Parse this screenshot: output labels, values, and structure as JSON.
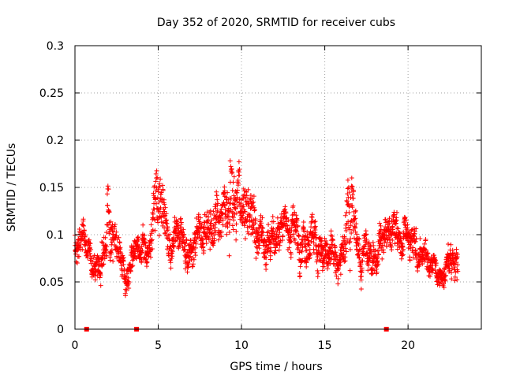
{
  "chart_data": {
    "type": "scatter",
    "title": "Day 352 of 2020, SRMTID for receiver cubs",
    "xlabel": "GPS time / hours",
    "ylabel": "SRMTID / TECUs",
    "xlim": [
      0,
      24.4
    ],
    "ylim": [
      0,
      0.3
    ],
    "x_ticks": [
      0,
      5,
      10,
      15,
      20
    ],
    "x_tick_labels": [
      "0",
      "5",
      "10",
      "15",
      "20"
    ],
    "y_ticks": [
      0,
      0.05,
      0.1,
      0.15,
      0.2,
      0.25,
      0.3
    ],
    "y_tick_labels": [
      "0",
      "0.05",
      "0.1",
      "0.15",
      "0.2",
      "0.25",
      "0.3"
    ],
    "grid": true,
    "marker": "plus",
    "color": "#ff0000",
    "gap_markers_x": [
      0.7,
      3.7,
      18.7
    ],
    "x_range": [
      0.0,
      23.0
    ],
    "sample_interval_hours": 0.01,
    "envelope": {
      "x": [
        0.0,
        0.5,
        1.0,
        1.5,
        2.0,
        2.5,
        3.0,
        3.5,
        4.0,
        4.5,
        5.0,
        5.5,
        6.0,
        6.5,
        7.0,
        7.5,
        8.0,
        8.5,
        9.0,
        9.5,
        10.0,
        10.5,
        11.0,
        11.5,
        12.0,
        12.5,
        13.0,
        13.5,
        14.0,
        14.5,
        15.0,
        15.5,
        16.0,
        16.5,
        17.0,
        17.5,
        18.0,
        18.5,
        19.0,
        19.5,
        20.0,
        20.5,
        21.0,
        21.5,
        22.0,
        22.5,
        23.0
      ],
      "y_mean": [
        0.085,
        0.09,
        0.075,
        0.07,
        0.11,
        0.09,
        0.06,
        0.075,
        0.09,
        0.08,
        0.13,
        0.11,
        0.1,
        0.09,
        0.085,
        0.095,
        0.11,
        0.125,
        0.13,
        0.15,
        0.11,
        0.14,
        0.1,
        0.09,
        0.085,
        0.1,
        0.11,
        0.1,
        0.09,
        0.1,
        0.08,
        0.085,
        0.08,
        0.12,
        0.07,
        0.085,
        0.08,
        0.09,
        0.1,
        0.085,
        0.095,
        0.09,
        0.08,
        0.07,
        0.055,
        0.085,
        0.08
      ],
      "y_spread": [
        0.03,
        0.03,
        0.025,
        0.025,
        0.05,
        0.03,
        0.025,
        0.025,
        0.03,
        0.025,
        0.07,
        0.035,
        0.03,
        0.03,
        0.03,
        0.03,
        0.035,
        0.045,
        0.045,
        0.08,
        0.04,
        0.07,
        0.03,
        0.03,
        0.03,
        0.035,
        0.035,
        0.035,
        0.035,
        0.035,
        0.03,
        0.03,
        0.03,
        0.08,
        0.03,
        0.03,
        0.03,
        0.03,
        0.035,
        0.03,
        0.03,
        0.03,
        0.025,
        0.02,
        0.015,
        0.035,
        0.03
      ]
    }
  }
}
